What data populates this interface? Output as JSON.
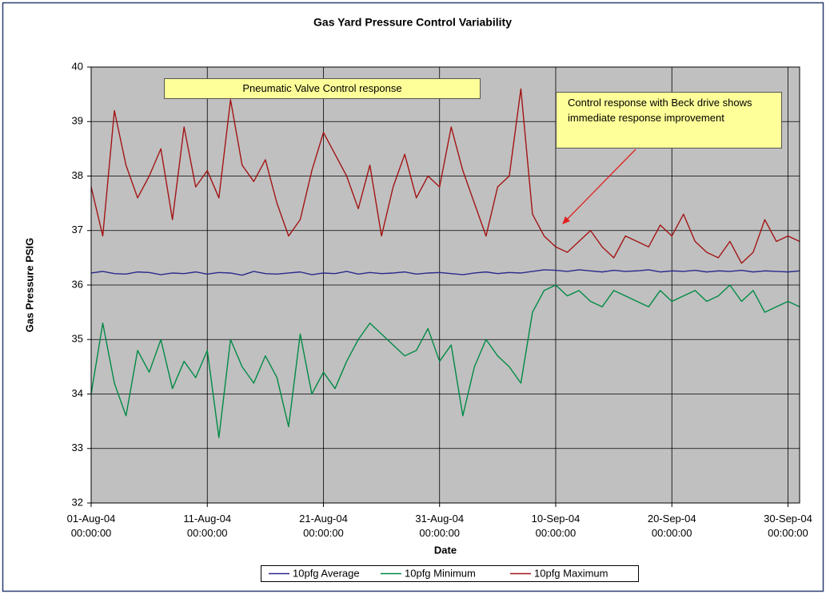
{
  "chart_data": {
    "type": "line",
    "title": "Gas Yard Pressure Control Variability",
    "xlabel": "Date",
    "ylabel": "Gas Pressure PSIG",
    "x": [
      "2004-08-01",
      "2004-08-02",
      "2004-08-03",
      "2004-08-04",
      "2004-08-05",
      "2004-08-06",
      "2004-08-07",
      "2004-08-08",
      "2004-08-09",
      "2004-08-10",
      "2004-08-11",
      "2004-08-12",
      "2004-08-13",
      "2004-08-14",
      "2004-08-15",
      "2004-08-16",
      "2004-08-17",
      "2004-08-18",
      "2004-08-19",
      "2004-08-20",
      "2004-08-21",
      "2004-08-22",
      "2004-08-23",
      "2004-08-24",
      "2004-08-25",
      "2004-08-26",
      "2004-08-27",
      "2004-08-28",
      "2004-08-29",
      "2004-08-30",
      "2004-08-31",
      "2004-09-01",
      "2004-09-02",
      "2004-09-03",
      "2004-09-04",
      "2004-09-05",
      "2004-09-06",
      "2004-09-07",
      "2004-09-08",
      "2004-09-09",
      "2004-09-10",
      "2004-09-11",
      "2004-09-12",
      "2004-09-13",
      "2004-09-14",
      "2004-09-15",
      "2004-09-16",
      "2004-09-17",
      "2004-09-18",
      "2004-09-19",
      "2004-09-20",
      "2004-09-21",
      "2004-09-22",
      "2004-09-23",
      "2004-09-24",
      "2004-09-25",
      "2004-09-26",
      "2004-09-27",
      "2004-09-28",
      "2004-09-29",
      "2004-09-30",
      "2004-10-01"
    ],
    "series": [
      {
        "name": "10pfg Average",
        "color": "#2a2a8c",
        "values": [
          36.22,
          36.25,
          36.21,
          36.2,
          36.24,
          36.23,
          36.19,
          36.22,
          36.21,
          36.24,
          36.2,
          36.23,
          36.22,
          36.18,
          36.25,
          36.21,
          36.2,
          36.22,
          36.24,
          36.19,
          36.22,
          36.21,
          36.25,
          36.2,
          36.23,
          36.21,
          36.22,
          36.24,
          36.2,
          36.22,
          36.23,
          36.21,
          36.19,
          36.22,
          36.24,
          36.21,
          36.23,
          36.22,
          36.25,
          36.28,
          36.27,
          36.25,
          36.28,
          36.26,
          36.24,
          36.27,
          36.25,
          36.26,
          36.28,
          36.24,
          36.26,
          36.25,
          36.27,
          36.24,
          36.26,
          36.25,
          36.27,
          36.24,
          36.26,
          36.25,
          36.24,
          36.26
        ]
      },
      {
        "name": "10pfg Minimum",
        "color": "#008a45",
        "values": [
          34.0,
          35.3,
          34.2,
          33.6,
          34.8,
          34.4,
          35.0,
          34.1,
          34.6,
          34.3,
          34.8,
          33.2,
          35.0,
          34.5,
          34.2,
          34.7,
          34.3,
          33.4,
          35.1,
          34.0,
          34.4,
          34.1,
          34.6,
          35.0,
          35.3,
          35.1,
          34.9,
          34.7,
          34.8,
          35.2,
          34.6,
          34.9,
          33.6,
          34.5,
          35.0,
          34.7,
          34.5,
          34.2,
          35.5,
          35.9,
          36.0,
          35.8,
          35.9,
          35.7,
          35.6,
          35.9,
          35.8,
          35.7,
          35.6,
          35.9,
          35.7,
          35.8,
          35.9,
          35.7,
          35.8,
          36.0,
          35.7,
          35.9,
          35.5,
          35.6,
          35.7,
          35.6
        ]
      },
      {
        "name": "10pfg Maximum",
        "color": "#a31414",
        "values": [
          37.8,
          36.9,
          39.2,
          38.2,
          37.6,
          38.0,
          38.5,
          37.2,
          38.9,
          37.8,
          38.1,
          37.6,
          39.4,
          38.2,
          37.9,
          38.3,
          37.5,
          36.9,
          37.2,
          38.1,
          38.8,
          38.4,
          38.0,
          37.4,
          38.2,
          36.9,
          37.8,
          38.4,
          37.6,
          38.0,
          37.8,
          38.9,
          38.1,
          37.5,
          36.9,
          37.8,
          38.0,
          39.6,
          37.3,
          36.9,
          36.7,
          36.6,
          36.8,
          37.0,
          36.7,
          36.5,
          36.9,
          36.8,
          36.7,
          37.1,
          36.9,
          37.3,
          36.8,
          36.6,
          36.5,
          36.8,
          36.4,
          36.6,
          37.2,
          36.8,
          36.9,
          36.8
        ]
      }
    ],
    "xlim": [
      "2004-08-01",
      "2004-10-01"
    ],
    "xticks": [
      {
        "value": "2004-08-01",
        "label": "01-Aug-04 00:00:00"
      },
      {
        "value": "2004-08-11",
        "label": "11-Aug-04 00:00:00"
      },
      {
        "value": "2004-08-21",
        "label": "21-Aug-04 00:00:00"
      },
      {
        "value": "2004-08-31",
        "label": "31-Aug-04 00:00:00"
      },
      {
        "value": "2004-09-10",
        "label": "10-Sep-04 00:00:00"
      },
      {
        "value": "2004-09-20",
        "label": "20-Sep-04 00:00:00"
      },
      {
        "value": "2004-09-30",
        "label": "30-Sep-04 00:00:00"
      }
    ],
    "ylim": [
      32,
      40
    ],
    "yticks": [
      32,
      33,
      34,
      35,
      36,
      37,
      38,
      39,
      40
    ],
    "grid": true,
    "legend": "bottom",
    "annotations": [
      {
        "text": "Pneumatic Valve Control response"
      },
      {
        "text": "Control response with Beck drive shows immediate response improvement"
      }
    ]
  }
}
